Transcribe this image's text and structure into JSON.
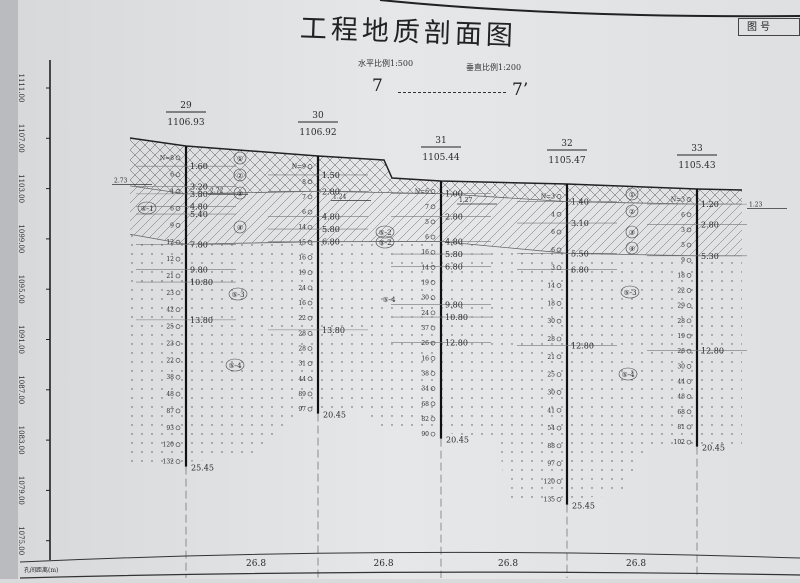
{
  "title": "工程地质剖面图",
  "horizontal_scale": "水平比例1:500",
  "vertical_scale": "垂直比例1:200",
  "section_start": "7",
  "section_end": "7’",
  "drawing_no_label": "图 号",
  "elevation_axis": [
    "1111.00",
    "1107.00",
    "1103.00",
    "1099.00",
    "1095.00",
    "1091.00",
    "1087.00",
    "1083.00",
    "1079.00",
    "1075.00"
  ],
  "distance_row_label": "孔间距离(m)",
  "distances": [
    "26.8",
    "26.8",
    "26.8",
    "26.8"
  ],
  "layer_labels": [
    "①",
    "②",
    "③",
    "④",
    "④-1",
    "⑤-2",
    "⑤-3",
    "⑤-4"
  ],
  "boreholes": [
    {
      "id": "29",
      "elevation": "1106.93",
      "water": "2.73",
      "fill_base": 3.8,
      "clay_base": 7.8,
      "depths": [
        "1.60",
        "3.20",
        "3.80",
        "4.80",
        "5.40",
        "7.80",
        "9.80",
        "10.80",
        "13.80"
      ],
      "end": "25.45",
      "n_values": [
        "N=8",
        "6",
        "4",
        "6",
        "9",
        "12",
        "12",
        "21",
        "23",
        "42",
        "25",
        "23",
        "22",
        "38",
        "48",
        "87",
        "93",
        "120",
        "132"
      ]
    },
    {
      "id": "30",
      "elevation": "1106.92",
      "water": "2.72",
      "fill_base": 2.8,
      "clay_base": 6.8,
      "depths": [
        "1.50",
        "2.80",
        "4.80",
        "5.80",
        "6.80",
        "13.80"
      ],
      "end": "20.45",
      "n_values": [
        "N=9",
        "8",
        "7",
        "6",
        "14",
        "15",
        "16",
        "19",
        "24",
        "16",
        "22",
        "28",
        "28",
        "31",
        "44",
        "89",
        "97"
      ]
    },
    {
      "id": "31",
      "elevation": "1105.44",
      "water": "1.24",
      "fill_base": 1.0,
      "clay_base": 4.8,
      "depths": [
        "1.00",
        "2.80",
        "4.80",
        "5.80",
        "6.80",
        "9.80",
        "10.80",
        "12.80"
      ],
      "end": "20.45",
      "n_values": [
        "N=6",
        "7",
        "5",
        "6",
        "16",
        "14",
        "19",
        "30",
        "24",
        "37",
        "26",
        "16",
        "38",
        "34",
        "68",
        "82",
        "90"
      ]
    },
    {
      "id": "32",
      "elevation": "1105.47",
      "water": "1.27",
      "fill_base": 1.4,
      "clay_base": 5.5,
      "depths": [
        "1.40",
        "3.10",
        "5.50",
        "6.80",
        "12.80"
      ],
      "end": "25.45",
      "n_values": [
        "N=3",
        "4",
        "6",
        "6",
        "3",
        "14",
        "18",
        "30",
        "28",
        "21",
        "25",
        "30",
        "41",
        "54",
        "88",
        "97",
        "120",
        "135"
      ]
    },
    {
      "id": "33",
      "elevation": "1105.43",
      "water": "1.23",
      "fill_base": 1.2,
      "clay_base": 5.3,
      "depths": [
        "1.20",
        "2.80",
        "5.30",
        "12.80"
      ],
      "end": "20.45",
      "n_values": [
        "N=3",
        "6",
        "3",
        "5",
        "9",
        "18",
        "22",
        "29",
        "28",
        "19",
        "28",
        "30",
        "44",
        "48",
        "68",
        "81",
        "102"
      ]
    }
  ]
}
